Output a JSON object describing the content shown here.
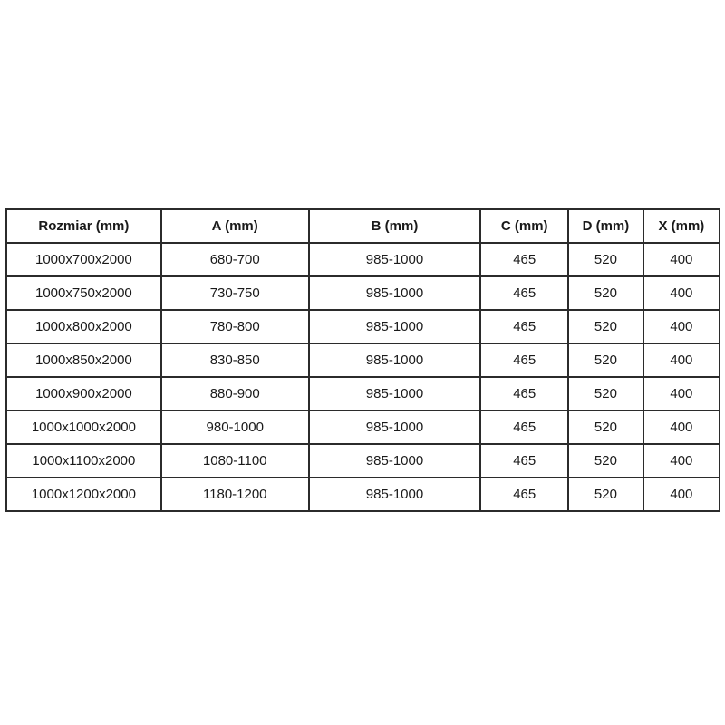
{
  "table": {
    "border_color": "#2b2b2b",
    "text_color": "#1a1a1a",
    "background_color": "#ffffff",
    "headers": [
      "Rozmiar (mm)",
      "A (mm)",
      "B (mm)",
      "C (mm)",
      "D (mm)",
      "X (mm)"
    ],
    "rows": [
      [
        "1000x700x2000",
        "680-700",
        "985-1000",
        "465",
        "520",
        "400"
      ],
      [
        "1000x750x2000",
        "730-750",
        "985-1000",
        "465",
        "520",
        "400"
      ],
      [
        "1000x800x2000",
        "780-800",
        "985-1000",
        "465",
        "520",
        "400"
      ],
      [
        "1000x850x2000",
        "830-850",
        "985-1000",
        "465",
        "520",
        "400"
      ],
      [
        "1000x900x2000",
        "880-900",
        "985-1000",
        "465",
        "520",
        "400"
      ],
      [
        "1000x1000x2000",
        "980-1000",
        "985-1000",
        "465",
        "520",
        "400"
      ],
      [
        "1000x1100x2000",
        "1080-1100",
        "985-1000",
        "465",
        "520",
        "400"
      ],
      [
        "1000x1200x2000",
        "1180-1200",
        "985-1000",
        "465",
        "520",
        "400"
      ]
    ]
  }
}
